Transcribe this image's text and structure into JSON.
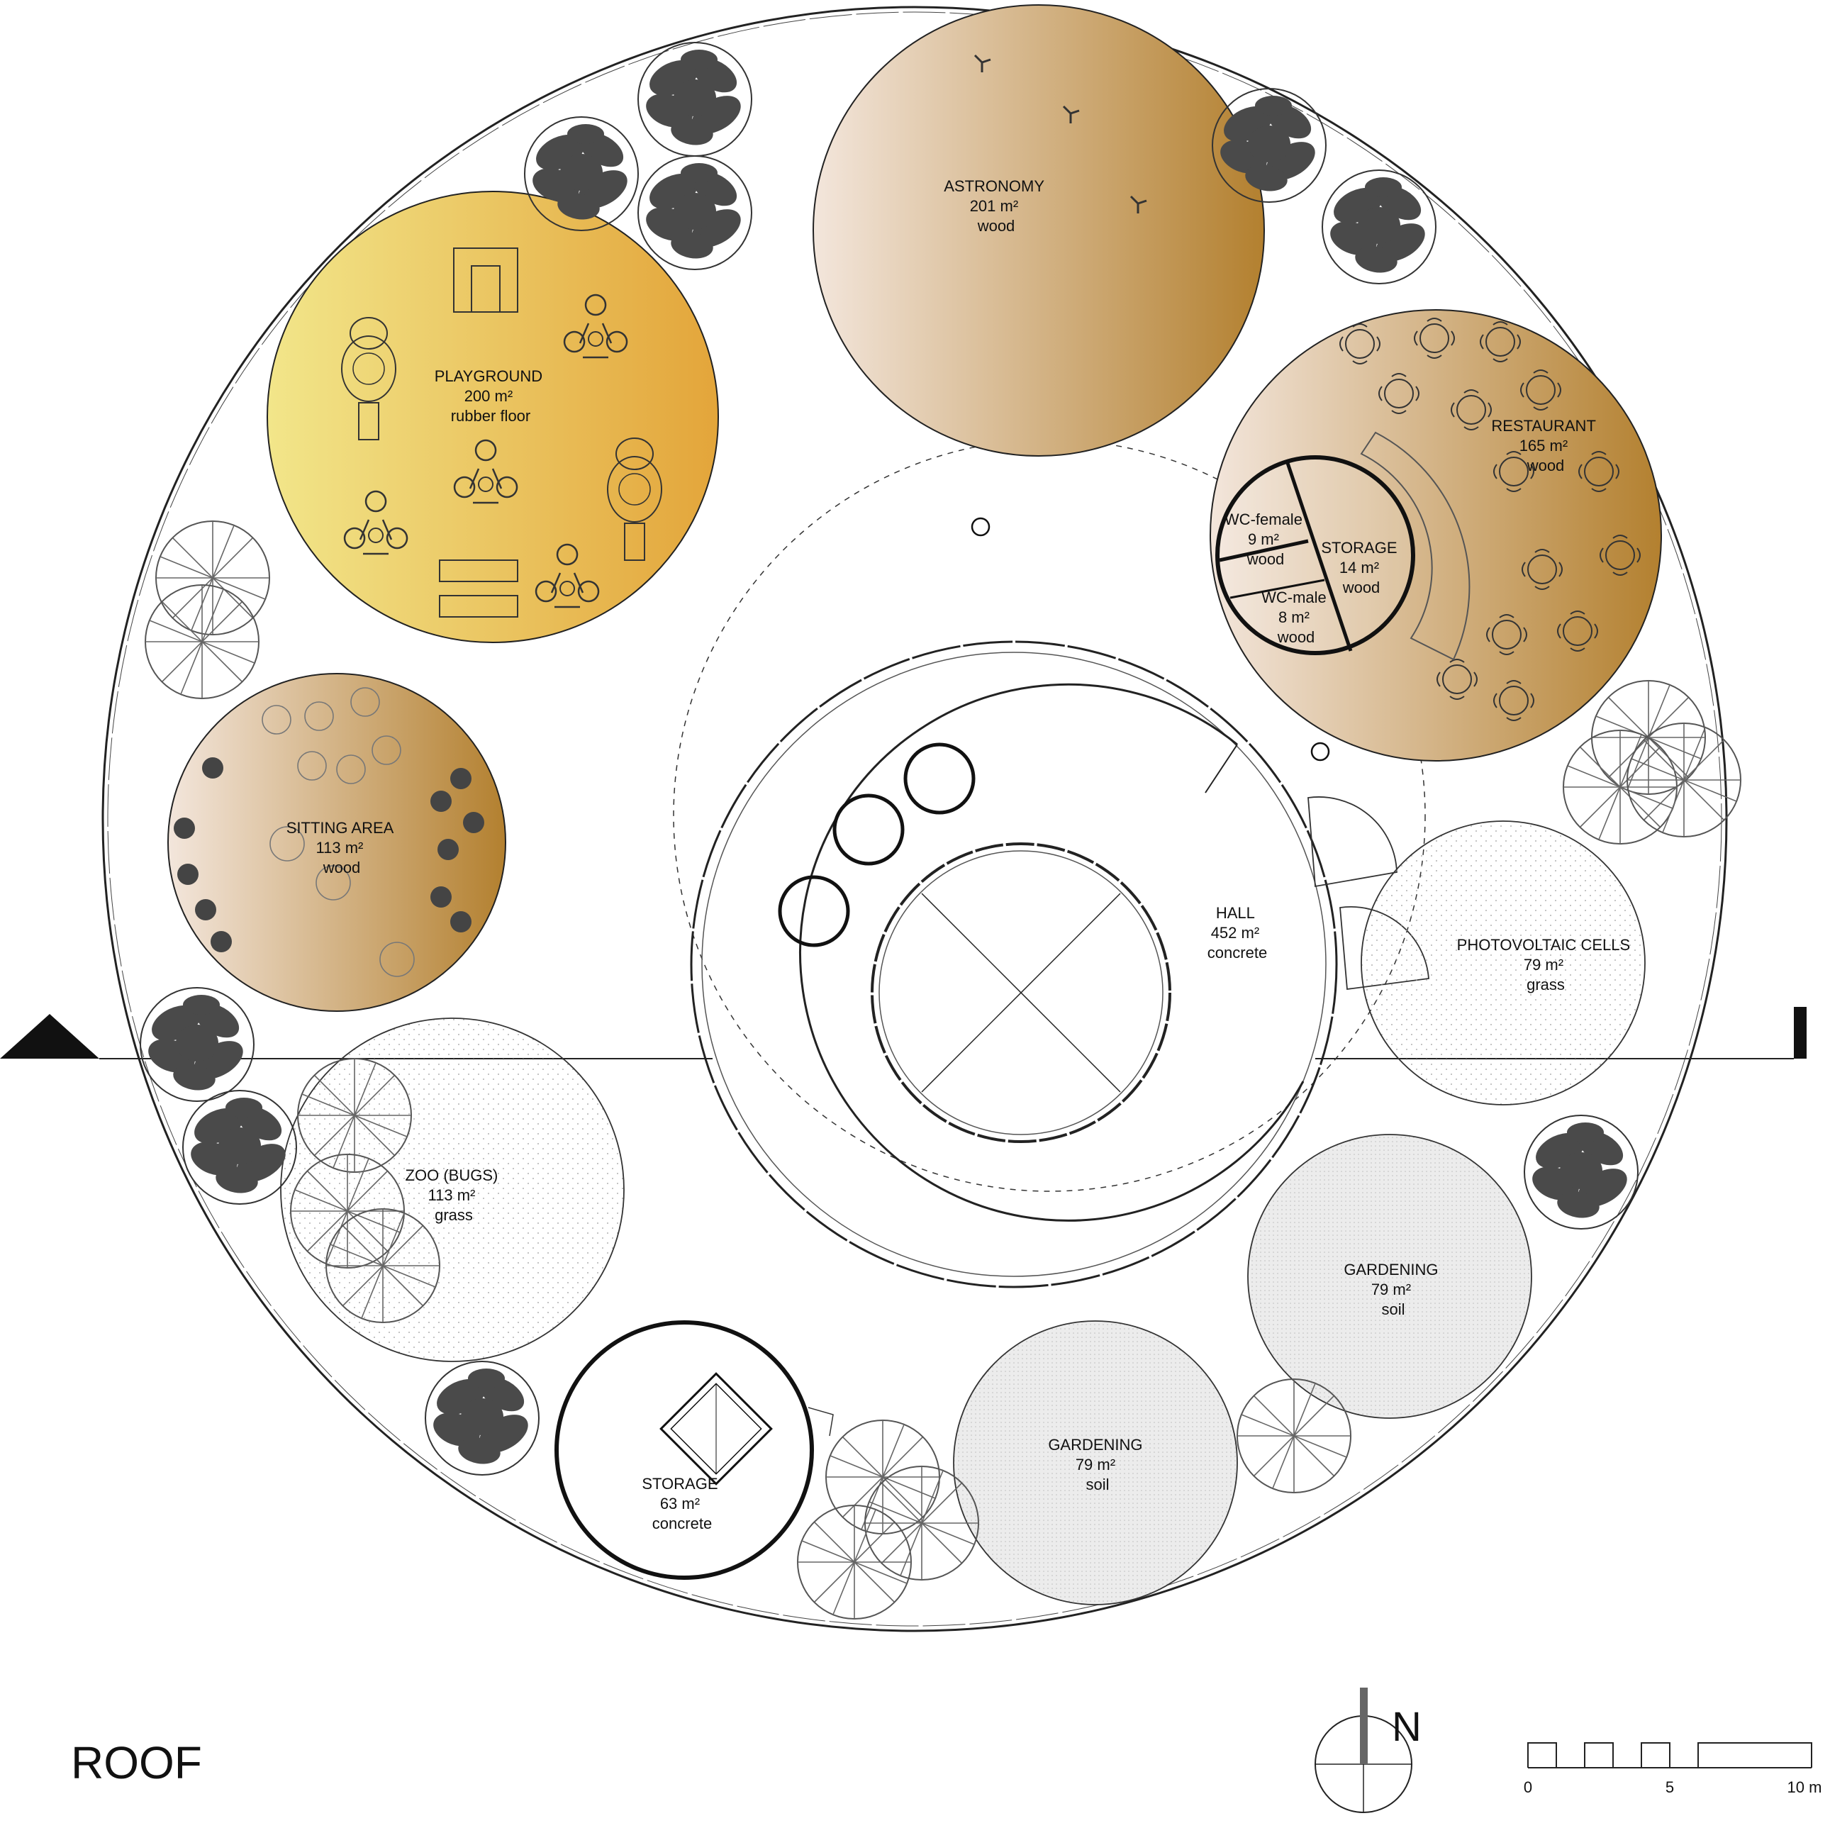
{
  "drawing_title": "ROOF",
  "north_label": "N",
  "scale_bar": {
    "ticks": [
      "0",
      "5",
      "10 m"
    ]
  },
  "zones": {
    "astronomy": {
      "name": "ASTRONOMY",
      "area": "201 m²",
      "material": "wood"
    },
    "playground": {
      "name": "PLAYGROUND",
      "area": "200 m²",
      "material": "rubber floor"
    },
    "restaurant": {
      "name": "RESTAURANT",
      "area": "165 m²",
      "material": "wood"
    },
    "wc_female": {
      "name": "WC-female",
      "area": "9 m²",
      "material": "wood"
    },
    "storage_small": {
      "name": "STORAGE",
      "area": "14 m²",
      "material": "wood"
    },
    "wc_male": {
      "name": "WC-male",
      "area": "8 m²",
      "material": "wood"
    },
    "sitting_area": {
      "name": "SITTING AREA",
      "area": "113 m²",
      "material": "wood"
    },
    "hall": {
      "name": "HALL",
      "area": "452 m²",
      "material": "concrete"
    },
    "photovoltaic": {
      "name": "PHOTOVOLTAIC CELLS",
      "area": "79 m²",
      "material": "grass"
    },
    "zoo": {
      "name": "ZOO (BUGS)",
      "area": "113 m²",
      "material": "grass"
    },
    "gardening_east": {
      "name": "GARDENING",
      "area": "79 m²",
      "material": "soil"
    },
    "gardening_south": {
      "name": "GARDENING",
      "area": "79 m²",
      "material": "soil"
    },
    "storage_large": {
      "name": "STORAGE",
      "area": "63 m²",
      "material": "concrete"
    }
  },
  "colors": {
    "playground_gradient": [
      "#f2e68a",
      "#e3a53a"
    ],
    "wood_gradient": [
      "#f3e6dc",
      "#b3802f"
    ],
    "line": "#222222",
    "tree_dark": "#4a4a4a",
    "hatched_soil": "#e6e6e6"
  },
  "legend": {
    "dark_tree_icon": "conifer-tree-icon",
    "light_tree_icon": "deciduous-tree-icon"
  }
}
